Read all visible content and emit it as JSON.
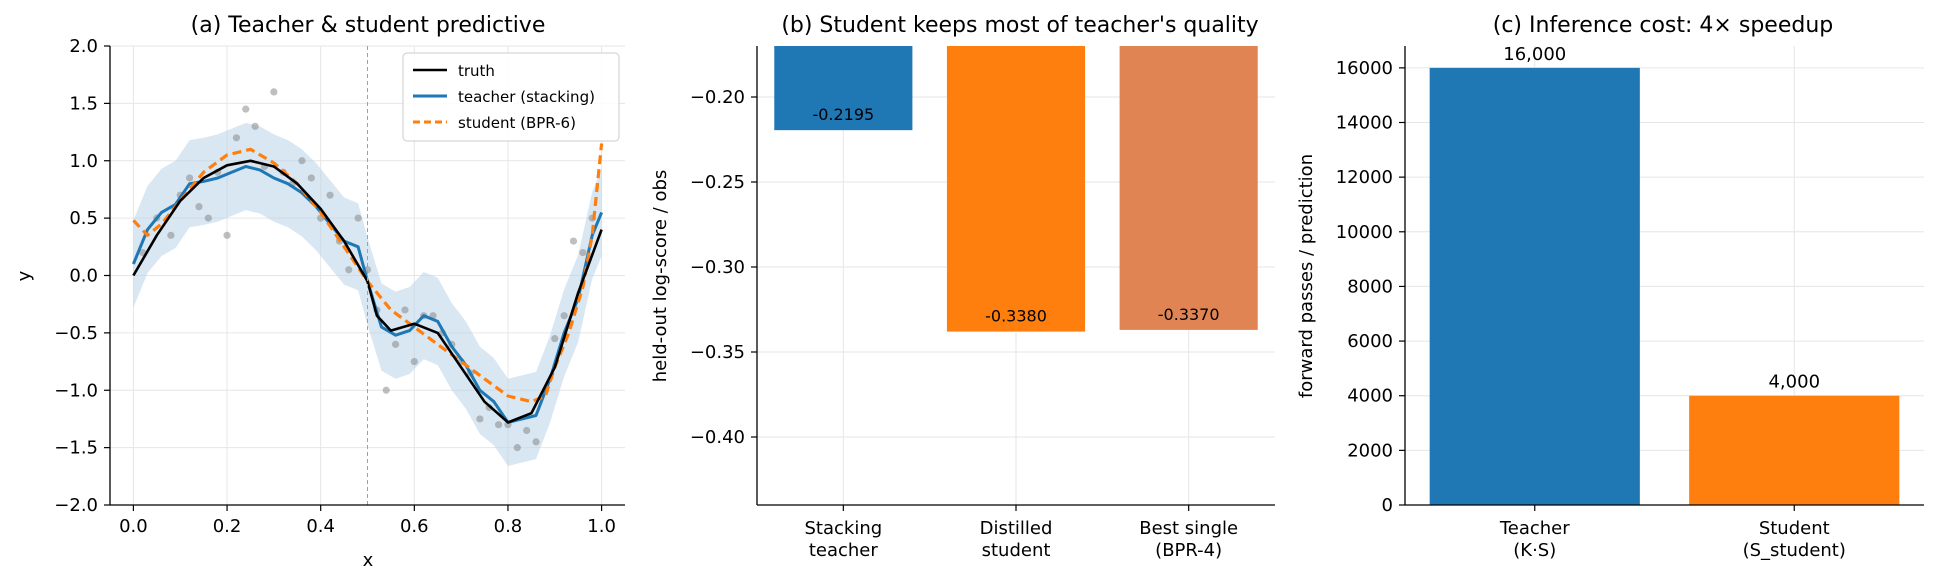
{
  "chart_data": [
    {
      "type": "line",
      "title": "(a) Teacher & student predictive",
      "xlabel": "x",
      "ylabel": "y",
      "xlim": [
        -0.05,
        1.05
      ],
      "ylim": [
        -2.0,
        2.0
      ],
      "x_ticks": [
        "0.0",
        "0.2",
        "0.4",
        "0.6",
        "0.8",
        "1.0"
      ],
      "y_ticks": [
        "−2.0",
        "−1.5",
        "−1.0",
        "−0.5",
        "0.0",
        "0.5",
        "1.0",
        "1.5",
        "2.0"
      ],
      "grid": true,
      "legend_position": "top-right",
      "vertical_line_x": 0.5,
      "colors": {
        "truth": "#000000",
        "teacher": "#1f77b4",
        "student": "#ff7f0e",
        "band": "#b9d3ea",
        "points": "#808080"
      },
      "series": [
        {
          "name": "truth",
          "x": [
            0.0,
            0.05,
            0.1,
            0.15,
            0.2,
            0.25,
            0.3,
            0.35,
            0.4,
            0.45,
            0.5,
            0.52,
            0.55,
            0.6,
            0.65,
            0.7,
            0.75,
            0.8,
            0.85,
            0.9,
            0.95,
            1.0
          ],
          "y": [
            0.0,
            0.35,
            0.65,
            0.85,
            0.96,
            1.0,
            0.95,
            0.8,
            0.58,
            0.3,
            -0.05,
            -0.35,
            -0.48,
            -0.42,
            -0.5,
            -0.8,
            -1.1,
            -1.28,
            -1.2,
            -0.8,
            -0.15,
            0.4
          ]
        },
        {
          "name": "teacher (stacking)",
          "x": [
            0.0,
            0.03,
            0.06,
            0.09,
            0.12,
            0.15,
            0.18,
            0.21,
            0.24,
            0.27,
            0.3,
            0.33,
            0.36,
            0.39,
            0.42,
            0.45,
            0.48,
            0.5,
            0.53,
            0.56,
            0.59,
            0.62,
            0.65,
            0.68,
            0.71,
            0.74,
            0.77,
            0.8,
            0.83,
            0.86,
            0.89,
            0.92,
            0.95,
            0.98,
            1.0
          ],
          "y": [
            0.1,
            0.4,
            0.55,
            0.62,
            0.8,
            0.82,
            0.85,
            0.9,
            0.95,
            0.92,
            0.85,
            0.8,
            0.72,
            0.6,
            0.45,
            0.3,
            0.25,
            -0.05,
            -0.45,
            -0.52,
            -0.48,
            -0.35,
            -0.4,
            -0.62,
            -0.78,
            -1.0,
            -1.1,
            -1.28,
            -1.25,
            -1.22,
            -0.9,
            -0.5,
            -0.2,
            0.35,
            0.55
          ]
        },
        {
          "name": "student (BPR-6)",
          "x": [
            0.0,
            0.03,
            0.06,
            0.1,
            0.15,
            0.2,
            0.25,
            0.3,
            0.35,
            0.4,
            0.45,
            0.5,
            0.55,
            0.6,
            0.65,
            0.7,
            0.75,
            0.8,
            0.85,
            0.88,
            0.9,
            0.93,
            0.96,
            0.98,
            1.0
          ],
          "y": [
            0.48,
            0.35,
            0.45,
            0.65,
            0.9,
            1.05,
            1.1,
            0.98,
            0.8,
            0.55,
            0.25,
            -0.05,
            -0.3,
            -0.45,
            -0.6,
            -0.75,
            -0.9,
            -1.05,
            -1.1,
            -1.05,
            -0.8,
            -0.5,
            -0.1,
            0.35,
            1.15
          ]
        }
      ],
      "band_width": 0.38,
      "observations": {
        "x": [
          0.02,
          0.05,
          0.08,
          0.1,
          0.12,
          0.14,
          0.16,
          0.18,
          0.2,
          0.22,
          0.24,
          0.26,
          0.28,
          0.3,
          0.32,
          0.34,
          0.36,
          0.38,
          0.4,
          0.42,
          0.44,
          0.46,
          0.48,
          0.5,
          0.52,
          0.54,
          0.56,
          0.58,
          0.6,
          0.62,
          0.64,
          0.66,
          0.68,
          0.7,
          0.72,
          0.74,
          0.76,
          0.78,
          0.8,
          0.82,
          0.84,
          0.86,
          0.88,
          0.9,
          0.92,
          0.94,
          0.96,
          0.98
        ],
        "y": [
          0.2,
          0.5,
          0.35,
          0.7,
          0.85,
          0.6,
          0.5,
          0.9,
          0.35,
          1.2,
          1.45,
          1.3,
          0.95,
          1.6,
          0.9,
          0.8,
          1.0,
          0.85,
          0.5,
          0.7,
          0.3,
          0.05,
          0.5,
          0.05,
          -0.3,
          -1.0,
          -0.6,
          -0.3,
          -0.75,
          -0.35,
          -0.35,
          -0.5,
          -0.6,
          -0.75,
          -0.85,
          -1.25,
          -1.15,
          -1.3,
          -1.3,
          -1.5,
          -1.35,
          -1.45,
          -1.0,
          -0.55,
          -0.35,
          0.3,
          0.2,
          0.5
        ]
      }
    },
    {
      "type": "bar",
      "title": "(b) Student keeps most of teacher's quality",
      "ylabel": "held-out log-score / obs",
      "categories": [
        "Stacking\nteacher",
        "Distilled\nstudent",
        "Best single\n(BPR-4)"
      ],
      "values": [
        -0.2195,
        -0.338,
        -0.337
      ],
      "value_labels": [
        "-0.2195",
        "-0.3380",
        "-0.3370"
      ],
      "ylim": [
        -0.44,
        -0.17
      ],
      "y_tick_values": [
        -0.4,
        -0.35,
        -0.3,
        -0.25,
        -0.2
      ],
      "y_ticks": [
        "−0.40",
        "−0.35",
        "−0.30",
        "−0.25",
        "−0.20"
      ],
      "colors": [
        "#1f77b4",
        "#ff7f0e",
        "#e08454"
      ],
      "grid": true
    },
    {
      "type": "bar",
      "title": "(c) Inference cost: 4× speedup",
      "ylabel": "forward passes / prediction",
      "categories": [
        "Teacher\n(K·S)",
        "Student\n(S_student)"
      ],
      "values": [
        16000,
        4000
      ],
      "value_labels": [
        "16,000",
        "4,000"
      ],
      "ylim": [
        0,
        16800
      ],
      "y_tick_values": [
        0,
        2000,
        4000,
        6000,
        8000,
        10000,
        12000,
        14000,
        16000
      ],
      "y_ticks": [
        "0",
        "2000",
        "4000",
        "6000",
        "8000",
        "10000",
        "12000",
        "14000",
        "16000"
      ],
      "colors": [
        "#1f77b4",
        "#ff7f0e"
      ],
      "grid": true
    }
  ]
}
